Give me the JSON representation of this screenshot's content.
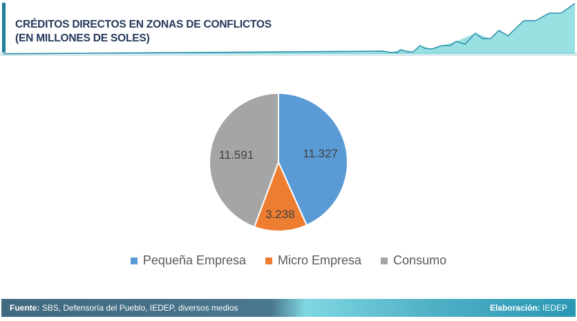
{
  "header": {
    "title_line1": "CRÉDITOS DIRECTOS EN ZONAS DE CONFLICTOS",
    "title_line2": "(EN MILLONES DE SOLES)"
  },
  "chart_data": {
    "type": "pie",
    "title": "CRÉDITOS DIRECTOS EN ZONAS DE CONFLICTOS (EN MILLONES DE SOLES)",
    "categories": [
      "Pequeña Empresa",
      "Micro Empresa",
      "Consumo"
    ],
    "values": [
      11327,
      3238,
      11591
    ],
    "labels": [
      "11.327",
      "3.238",
      "11.591"
    ],
    "colors": [
      "#5B9BD5",
      "#ED7D31",
      "#A5A5A5"
    ],
    "legend": "bottom"
  },
  "footer": {
    "source_label": "Fuente:",
    "source_text": "SBS, Defensoría del Pueblo, IEDEP, diversos medios",
    "credit_label": "Elaboración:",
    "credit_text": "IEDEP"
  }
}
